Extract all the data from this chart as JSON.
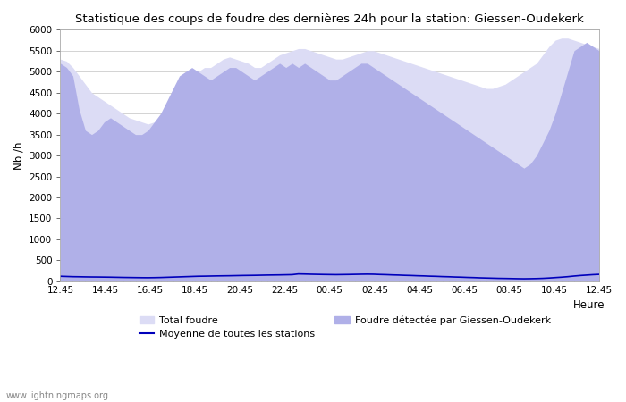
{
  "title": "Statistique des coups de foudre des dernières 24h pour la station: Giessen-Oudekerk",
  "xlabel": "Heure",
  "ylabel": "Nb /h",
  "ylim": [
    0,
    6000
  ],
  "yticks": [
    0,
    500,
    1000,
    1500,
    2000,
    2500,
    3000,
    3500,
    4000,
    4500,
    5000,
    5500,
    6000
  ],
  "xtick_labels": [
    "12:45",
    "14:45",
    "16:45",
    "18:45",
    "20:45",
    "22:45",
    "00:45",
    "02:45",
    "04:45",
    "06:45",
    "08:45",
    "10:45",
    "12:45"
  ],
  "watermark": "www.lightningmaps.org",
  "color_total": "#dcdcf5",
  "color_detected": "#b0b0e8",
  "color_mean_line": "#0000bb",
  "total_foudre": [
    5300,
    5250,
    5100,
    4900,
    4700,
    4500,
    4400,
    4300,
    4200,
    4100,
    4000,
    3900,
    3850,
    3800,
    3750,
    3800,
    3900,
    4000,
    4200,
    4400,
    4600,
    4800,
    5000,
    5100,
    5100,
    5200,
    5300,
    5350,
    5300,
    5250,
    5200,
    5100,
    5100,
    5200,
    5300,
    5400,
    5450,
    5500,
    5550,
    5550,
    5500,
    5450,
    5400,
    5350,
    5300,
    5300,
    5350,
    5400,
    5450,
    5500,
    5500,
    5450,
    5400,
    5350,
    5300,
    5250,
    5200,
    5150,
    5100,
    5050,
    5000,
    4950,
    4900,
    4850,
    4800,
    4750,
    4700,
    4650,
    4600,
    4600,
    4650,
    4700,
    4800,
    4900,
    5000,
    5100,
    5200,
    5400,
    5600,
    5750,
    5800,
    5800,
    5750,
    5700,
    5650,
    5600,
    5550
  ],
  "foudre_detected": [
    5200,
    5100,
    4900,
    4100,
    3600,
    3500,
    3600,
    3800,
    3900,
    3800,
    3700,
    3600,
    3500,
    3500,
    3600,
    3800,
    4000,
    4300,
    4600,
    4900,
    5000,
    5100,
    5000,
    4900,
    4800,
    4900,
    5000,
    5100,
    5100,
    5000,
    4900,
    4800,
    4900,
    5000,
    5100,
    5200,
    5100,
    5200,
    5100,
    5200,
    5100,
    5000,
    4900,
    4800,
    4800,
    4900,
    5000,
    5100,
    5200,
    5200,
    5100,
    5000,
    4900,
    4800,
    4700,
    4600,
    4500,
    4400,
    4300,
    4200,
    4100,
    4000,
    3900,
    3800,
    3700,
    3600,
    3500,
    3400,
    3300,
    3200,
    3100,
    3000,
    2900,
    2800,
    2700,
    2800,
    3000,
    3300,
    3600,
    4000,
    4500,
    5000,
    5500,
    5600,
    5700,
    5600,
    5500
  ],
  "mean_line": [
    120,
    115,
    110,
    108,
    105,
    103,
    102,
    100,
    98,
    95,
    92,
    90,
    88,
    86,
    85,
    87,
    90,
    95,
    100,
    105,
    110,
    115,
    120,
    122,
    125,
    128,
    130,
    132,
    135,
    138,
    140,
    142,
    145,
    148,
    150,
    152,
    155,
    158,
    175,
    172,
    168,
    165,
    162,
    160,
    158,
    160,
    162,
    165,
    168,
    170,
    168,
    162,
    158,
    152,
    148,
    142,
    138,
    132,
    128,
    122,
    118,
    112,
    108,
    102,
    98,
    92,
    88,
    82,
    78,
    74,
    70,
    68,
    65,
    62,
    60,
    62,
    65,
    70,
    78,
    88,
    98,
    110,
    125,
    138,
    148,
    158,
    165
  ]
}
